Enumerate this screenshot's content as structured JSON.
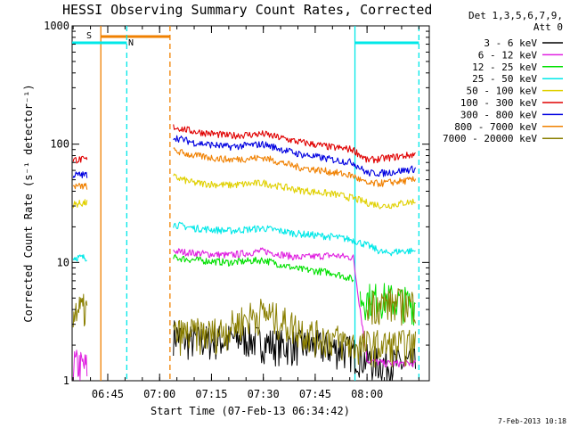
{
  "chart_data": {
    "type": "line",
    "title": "HESSI Observing Summary Count Rates, Corrected",
    "xlabel": "Start Time (07-Feb-13 06:34:42)",
    "ylabel": "Corrected Count Rate (s⁻¹ detector⁻¹)",
    "y_scale": "log",
    "ylim": [
      1,
      1000
    ],
    "xlim": [
      "06:34:42",
      "08:18:00"
    ],
    "x_ticks": [
      "06:45",
      "07:00",
      "07:15",
      "07:30",
      "07:45",
      "08:00"
    ],
    "y_ticks": [
      "1",
      "10",
      "100",
      "1000"
    ],
    "legend_header": [
      "Det 1,3,5,6,7,9,",
      "Att 0"
    ],
    "legend_placement": "right, outside plot",
    "timestamp": "7-Feb-2013 10:18",
    "annotations": {
      "saa_label": "S",
      "night_label": "N",
      "saa_interval": [
        "06:43:00",
        "07:03:00"
      ],
      "night_interval": [
        "06:34:42",
        "06:50:30"
      ],
      "night_interval_2": [
        "07:56:30",
        "08:15:00"
      ]
    },
    "series": [
      {
        "name": "3 - 6 keV",
        "color": "#000000",
        "segments": [
          {
            "t": [
              "07:04",
              "07:08",
              "07:15",
              "07:25",
              "07:35",
              "07:45",
              "07:55",
              "08:00",
              "08:05",
              "08:14"
            ],
            "v": [
              2.5,
              2.2,
              2.2,
              2.3,
              2.0,
              2.0,
              1.8,
              1.5,
              1.4,
              1.4
            ]
          }
        ]
      },
      {
        "name": "6 - 12 keV",
        "color": "#e020e0",
        "segments": [
          {
            "t": [
              "06:35",
              "06:39"
            ],
            "v": [
              1.4,
              1.3
            ]
          },
          {
            "t": [
              "07:04",
              "07:10",
              "07:20",
              "07:30",
              "07:40",
              "07:50",
              "07:56",
              "08:00",
              "08:05",
              "08:14"
            ],
            "v": [
              12.5,
              12.0,
              11.5,
              12.5,
              11.0,
              11.5,
              11.0,
              1.5,
              1.4,
              1.4
            ]
          }
        ]
      },
      {
        "name": "12 - 25 keV",
        "color": "#00e000",
        "segments": [
          {
            "t": [
              "07:04",
              "07:10",
              "07:20",
              "07:30",
              "07:40",
              "07:50",
              "07:56"
            ],
            "v": [
              11.0,
              10.5,
              10.0,
              10.5,
              8.8,
              8.2,
              7.2
            ]
          },
          {
            "t": [
              "07:58",
              "08:05",
              "08:14"
            ],
            "v": [
              5.0,
              5.0,
              4.5
            ]
          }
        ]
      },
      {
        "name": "25 - 50 keV",
        "color": "#00e8e8",
        "segments": [
          {
            "t": [
              "06:35",
              "06:39"
            ],
            "v": [
              11.0,
              11.0
            ]
          },
          {
            "t": [
              "07:04",
              "07:10",
              "07:20",
              "07:30",
              "07:40",
              "07:50",
              "07:56",
              "08:00",
              "08:05",
              "08:10",
              "08:14"
            ],
            "v": [
              21.0,
              19.5,
              18.5,
              19.5,
              17.5,
              16.5,
              15.5,
              14.0,
              12.0,
              12.5,
              12.5
            ]
          }
        ]
      },
      {
        "name": "50 - 100 keV",
        "color": "#e0d000",
        "segments": [
          {
            "t": [
              "06:35",
              "06:39"
            ],
            "v": [
              31.0,
              32.0
            ]
          },
          {
            "t": [
              "07:04",
              "07:10",
              "07:20",
              "07:30",
              "07:40",
              "07:50",
              "07:56",
              "08:00",
              "08:05",
              "08:14"
            ],
            "v": [
              53.0,
              47.0,
              45.0,
              47.0,
              41.0,
              38.0,
              35.0,
              32.0,
              30.0,
              33.0
            ]
          }
        ]
      },
      {
        "name": "100 - 300 keV",
        "color": "#e00000",
        "segments": [
          {
            "t": [
              "06:35",
              "06:39"
            ],
            "v": [
              74.0,
              74.0
            ]
          },
          {
            "t": [
              "07:04",
              "07:10",
              "07:20",
              "07:30",
              "07:40",
              "07:50",
              "07:56",
              "08:00",
              "08:05",
              "08:14"
            ],
            "v": [
              140.0,
              128.0,
              118.0,
              122.0,
              105.0,
              94.0,
              90.0,
              73.0,
              76.0,
              82.0
            ]
          }
        ]
      },
      {
        "name": "300 - 800 keV",
        "color": "#0000e0",
        "segments": [
          {
            "t": [
              "06:35",
              "06:39"
            ],
            "v": [
              55.0,
              55.0
            ]
          },
          {
            "t": [
              "07:04",
              "07:10",
              "07:20",
              "07:30",
              "07:40",
              "07:50",
              "07:56",
              "08:00",
              "08:05",
              "08:14"
            ],
            "v": [
              115.0,
              103.0,
              95.0,
              100.0,
              83.0,
              74.0,
              70.0,
              57.0,
              57.0,
              62.0
            ]
          }
        ]
      },
      {
        "name": "800 - 7000 keV",
        "color": "#f08000",
        "segments": [
          {
            "t": [
              "06:35",
              "06:39"
            ],
            "v": [
              44.0,
              44.0
            ]
          },
          {
            "t": [
              "07:04",
              "07:10",
              "07:20",
              "07:30",
              "07:40",
              "07:50",
              "07:56",
              "08:00",
              "08:05",
              "08:14"
            ],
            "v": [
              88.0,
              80.0,
              74.0,
              77.0,
              64.0,
              58.0,
              54.0,
              46.0,
              47.0,
              50.0
            ]
          }
        ]
      },
      {
        "name": "7000 - 20000 keV",
        "color": "#8a7f00",
        "segments": [
          {
            "t": [
              "06:35",
              "06:39"
            ],
            "v": [
              4.0,
              4.0
            ]
          },
          {
            "t": [
              "07:04",
              "07:10",
              "07:15",
              "07:20",
              "07:25",
              "07:30",
              "07:35",
              "07:40",
              "07:45",
              "07:50",
              "07:56",
              "08:00",
              "08:05",
              "08:14"
            ],
            "v": [
              2.5,
              2.5,
              2.5,
              2.8,
              3.4,
              3.8,
              3.2,
              2.8,
              2.4,
              2.3,
              2.0,
              2.0,
              2.0,
              2.0
            ]
          },
          {
            "t": [
              "08:00",
              "08:05",
              "08:14"
            ],
            "v": [
              4.5,
              4.5,
              4.5
            ]
          }
        ]
      }
    ]
  }
}
